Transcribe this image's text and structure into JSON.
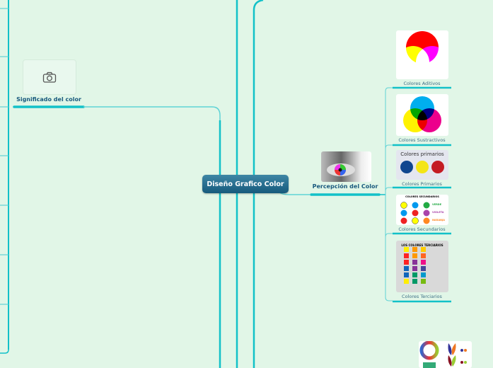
{
  "central_topic": "Diseño Grafico Color",
  "branches": [
    {
      "label": "Significado del color",
      "icon": "camera-icon"
    },
    {
      "label": "Percepción del Color",
      "children": [
        {
          "label": "Colores Aditivos"
        },
        {
          "label": "Colores Sustractivos"
        },
        {
          "label": "Colores Primarios",
          "image_title": "Colores primarios"
        },
        {
          "label": "Colores Secundarios",
          "image_title": "COLORES SECUNDARIOS",
          "image_words": [
            "VERDE",
            "VIOLETA",
            "NARANJA"
          ]
        },
        {
          "label": "Colores Terciarios",
          "image_title": "LOS COLORES TERCIARIOS"
        }
      ]
    }
  ],
  "colors": {
    "background": "#e1f6e7",
    "connector": "#12c1c8",
    "central": "#1f6a8c",
    "label": "#3d6f86"
  }
}
